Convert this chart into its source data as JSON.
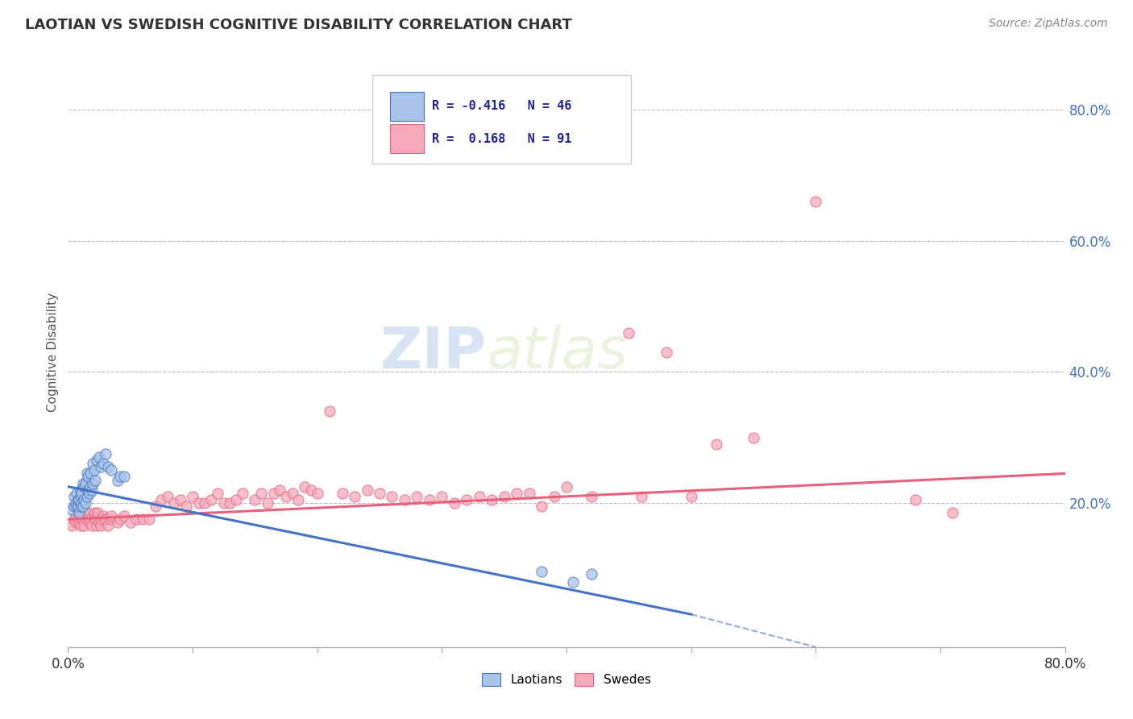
{
  "title": "LAOTIAN VS SWEDISH COGNITIVE DISABILITY CORRELATION CHART",
  "source": "Source: ZipAtlas.com",
  "ylabel": "Cognitive Disability",
  "ytick_labels": [
    "20.0%",
    "40.0%",
    "60.0%",
    "80.0%"
  ],
  "ytick_values": [
    0.2,
    0.4,
    0.6,
    0.8
  ],
  "xlim": [
    0.0,
    0.8
  ],
  "ylim": [
    -0.02,
    0.88
  ],
  "legend_r_blue": "-0.416",
  "legend_n_blue": "46",
  "legend_r_pink": "0.168",
  "legend_n_pink": "91",
  "blue_color": "#A8C4E8",
  "pink_color": "#F5AABB",
  "trend_blue_color": "#4472C4",
  "trend_pink_color": "#E8607A",
  "watermark_zip": "ZIP",
  "watermark_atlas": "atlas",
  "blue_scatter_x": [
    0.003,
    0.005,
    0.005,
    0.006,
    0.007,
    0.007,
    0.008,
    0.008,
    0.009,
    0.009,
    0.01,
    0.01,
    0.01,
    0.011,
    0.011,
    0.012,
    0.012,
    0.013,
    0.013,
    0.014,
    0.014,
    0.015,
    0.015,
    0.016,
    0.016,
    0.017,
    0.018,
    0.018,
    0.019,
    0.02,
    0.02,
    0.021,
    0.022,
    0.023,
    0.025,
    0.026,
    0.028,
    0.03,
    0.032,
    0.035,
    0.04,
    0.042,
    0.045,
    0.38,
    0.405,
    0.42
  ],
  "blue_scatter_y": [
    0.19,
    0.195,
    0.21,
    0.2,
    0.195,
    0.215,
    0.195,
    0.205,
    0.185,
    0.205,
    0.195,
    0.21,
    0.22,
    0.2,
    0.215,
    0.195,
    0.23,
    0.205,
    0.225,
    0.2,
    0.23,
    0.21,
    0.245,
    0.22,
    0.24,
    0.215,
    0.225,
    0.245,
    0.22,
    0.23,
    0.26,
    0.25,
    0.235,
    0.265,
    0.27,
    0.255,
    0.26,
    0.275,
    0.255,
    0.25,
    0.235,
    0.24,
    0.24,
    0.095,
    0.08,
    0.092
  ],
  "pink_scatter_x": [
    0.003,
    0.005,
    0.006,
    0.007,
    0.008,
    0.009,
    0.01,
    0.011,
    0.012,
    0.013,
    0.015,
    0.016,
    0.017,
    0.018,
    0.019,
    0.02,
    0.021,
    0.022,
    0.023,
    0.024,
    0.025,
    0.026,
    0.027,
    0.028,
    0.03,
    0.032,
    0.034,
    0.035,
    0.04,
    0.042,
    0.045,
    0.05,
    0.055,
    0.06,
    0.065,
    0.07,
    0.075,
    0.08,
    0.085,
    0.09,
    0.095,
    0.1,
    0.105,
    0.11,
    0.115,
    0.12,
    0.125,
    0.13,
    0.135,
    0.14,
    0.15,
    0.155,
    0.16,
    0.165,
    0.17,
    0.175,
    0.18,
    0.185,
    0.19,
    0.195,
    0.2,
    0.21,
    0.22,
    0.23,
    0.24,
    0.25,
    0.26,
    0.27,
    0.28,
    0.29,
    0.3,
    0.31,
    0.32,
    0.33,
    0.34,
    0.35,
    0.36,
    0.37,
    0.38,
    0.39,
    0.4,
    0.42,
    0.45,
    0.46,
    0.48,
    0.5,
    0.52,
    0.55,
    0.6,
    0.68,
    0.71
  ],
  "pink_scatter_y": [
    0.165,
    0.175,
    0.17,
    0.18,
    0.17,
    0.175,
    0.165,
    0.18,
    0.175,
    0.165,
    0.175,
    0.185,
    0.17,
    0.175,
    0.165,
    0.18,
    0.185,
    0.175,
    0.165,
    0.185,
    0.17,
    0.165,
    0.175,
    0.18,
    0.175,
    0.165,
    0.175,
    0.18,
    0.17,
    0.175,
    0.18,
    0.17,
    0.175,
    0.175,
    0.175,
    0.195,
    0.205,
    0.21,
    0.2,
    0.205,
    0.195,
    0.21,
    0.2,
    0.2,
    0.205,
    0.215,
    0.2,
    0.2,
    0.205,
    0.215,
    0.205,
    0.215,
    0.2,
    0.215,
    0.22,
    0.21,
    0.215,
    0.205,
    0.225,
    0.22,
    0.215,
    0.34,
    0.215,
    0.21,
    0.22,
    0.215,
    0.21,
    0.205,
    0.21,
    0.205,
    0.21,
    0.2,
    0.205,
    0.21,
    0.205,
    0.21,
    0.215,
    0.215,
    0.195,
    0.21,
    0.225,
    0.21,
    0.46,
    0.21,
    0.43,
    0.21,
    0.29,
    0.3,
    0.66,
    0.205,
    0.185
  ]
}
